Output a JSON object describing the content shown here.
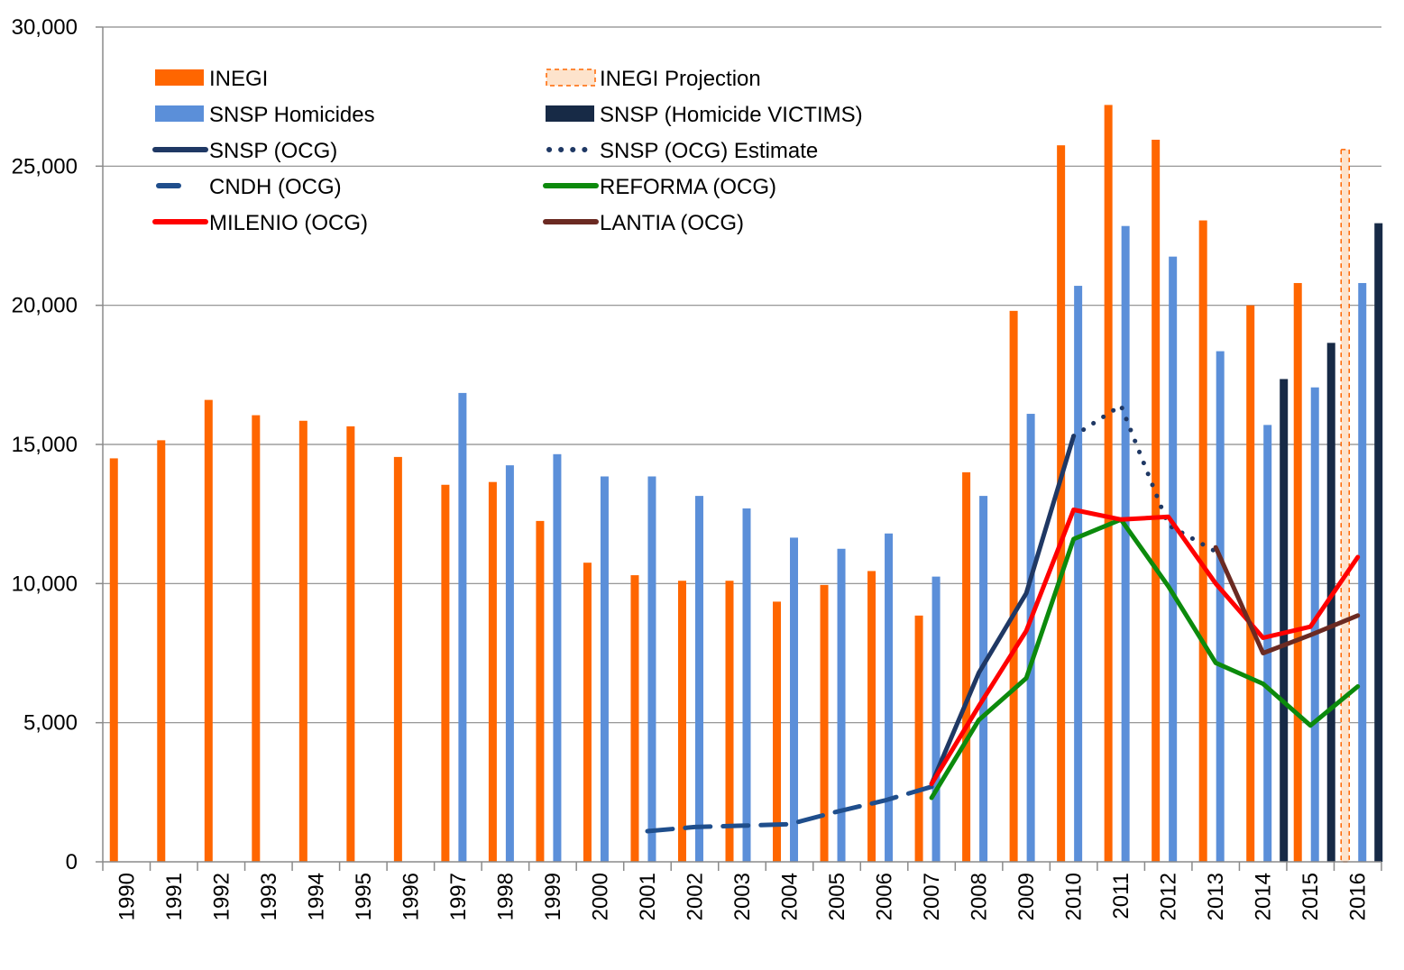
{
  "chart_data": {
    "type": "bar",
    "title": "",
    "xlabel": "",
    "ylabel": "",
    "ylim": [
      0,
      30000
    ],
    "yticks": [
      0,
      5000,
      10000,
      15000,
      20000,
      25000,
      30000
    ],
    "ytick_labels": [
      "0",
      "5,000",
      "10,000",
      "15,000",
      "20,000",
      "25,000",
      "30,000"
    ],
    "categories": [
      "1990",
      "1991",
      "1992",
      "1993",
      "1994",
      "1995",
      "1996",
      "1997",
      "1998",
      "1999",
      "2000",
      "2001",
      "2002",
      "2003",
      "2004",
      "2005",
      "2006",
      "2007",
      "2008",
      "2009",
      "2010",
      "2011",
      "2012",
      "2013",
      "2014",
      "2015",
      "2016"
    ],
    "grid": "horizontal",
    "legend_position": "top-left",
    "bar_series": [
      {
        "name": "INEGI",
        "color": "#ff6600",
        "style": "solid",
        "values": [
          14500,
          15150,
          16600,
          16050,
          15850,
          15650,
          14550,
          13550,
          13650,
          12250,
          10750,
          10300,
          10100,
          10100,
          9350,
          9950,
          10450,
          8850,
          14000,
          19800,
          25750,
          27200,
          25950,
          23050,
          20000,
          20800,
          null
        ]
      },
      {
        "name": "INEGI Projection",
        "color": "#ff6600",
        "style": "dashed",
        "values": [
          null,
          null,
          null,
          null,
          null,
          null,
          null,
          null,
          null,
          null,
          null,
          null,
          null,
          null,
          null,
          null,
          null,
          null,
          null,
          null,
          null,
          null,
          null,
          null,
          null,
          null,
          25600
        ]
      },
      {
        "name": "SNSP Homicides",
        "color": "#5b8fd9",
        "style": "solid",
        "values": [
          null,
          null,
          null,
          null,
          null,
          null,
          null,
          16850,
          14250,
          14650,
          13850,
          13850,
          13150,
          12700,
          11650,
          11250,
          11800,
          10250,
          13150,
          16100,
          20700,
          22850,
          21750,
          18350,
          15700,
          17050,
          20800
        ]
      },
      {
        "name": "SNSP (Homicide VICTIMS)",
        "color": "#172a46",
        "style": "solid",
        "values": [
          null,
          null,
          null,
          null,
          null,
          null,
          null,
          null,
          null,
          null,
          null,
          null,
          null,
          null,
          null,
          null,
          null,
          null,
          null,
          null,
          null,
          null,
          null,
          null,
          17350,
          18650,
          22950
        ]
      }
    ],
    "line_series": [
      {
        "name": "SNSP (OCG)",
        "color": "#1f3864",
        "dash": "solid",
        "points": [
          [
            "2007",
            2800
          ],
          [
            "2008",
            6800
          ],
          [
            "2009",
            9650
          ],
          [
            "2010",
            15300
          ]
        ]
      },
      {
        "name": "SNSP (OCG) Estimate",
        "color": "#1f3864",
        "dash": "dotted",
        "points": [
          [
            "2010",
            15300
          ],
          [
            "2011",
            16400
          ],
          [
            "2012",
            12100
          ],
          [
            "2013",
            11150
          ]
        ]
      },
      {
        "name": "CNDH (OCG)",
        "color": "#1f4e8c",
        "dash": "dashed",
        "points": [
          [
            "2001",
            1100
          ],
          [
            "2002",
            1250
          ],
          [
            "2003",
            1300
          ],
          [
            "2004",
            1350
          ],
          [
            "2005",
            1800
          ],
          [
            "2006",
            2200
          ],
          [
            "2007",
            2700
          ]
        ]
      },
      {
        "name": "REFORMA (OCG)",
        "color": "#0c8a0c",
        "dash": "solid",
        "points": [
          [
            "2007",
            2300
          ],
          [
            "2008",
            5100
          ],
          [
            "2009",
            6600
          ],
          [
            "2010",
            11600
          ],
          [
            "2011",
            12300
          ],
          [
            "2012",
            9900
          ],
          [
            "2013",
            7150
          ],
          [
            "2014",
            6400
          ],
          [
            "2015",
            4900
          ],
          [
            "2016",
            6300
          ]
        ]
      },
      {
        "name": "MILENIO (OCG)",
        "color": "#ff0000",
        "dash": "solid",
        "points": [
          [
            "2007",
            2800
          ],
          [
            "2008",
            5600
          ],
          [
            "2009",
            8300
          ],
          [
            "2010",
            12650
          ],
          [
            "2011",
            12300
          ],
          [
            "2012",
            12400
          ],
          [
            "2013",
            10000
          ],
          [
            "2014",
            8050
          ],
          [
            "2015",
            8450
          ],
          [
            "2016",
            10950
          ]
        ]
      },
      {
        "name": "LANTIA (OCG)",
        "color": "#6b2a22",
        "dash": "solid",
        "points": [
          [
            "2013",
            11300
          ],
          [
            "2014",
            7500
          ],
          [
            "2015",
            8150
          ],
          [
            "2016",
            8850
          ]
        ]
      }
    ],
    "legend": [
      {
        "label": "INEGI",
        "kind": "bar",
        "color": "#ff6600"
      },
      {
        "label": "INEGI Projection",
        "kind": "bar-dashed",
        "color": "#ff6600"
      },
      {
        "label": "SNSP Homicides",
        "kind": "bar",
        "color": "#5b8fd9"
      },
      {
        "label": "SNSP (Homicide VICTIMS)",
        "kind": "bar",
        "color": "#172a46"
      },
      {
        "label": "SNSP (OCG)",
        "kind": "line",
        "color": "#1f3864",
        "dash": "solid"
      },
      {
        "label": "SNSP (OCG) Estimate",
        "kind": "line",
        "color": "#1f3864",
        "dash": "dotted"
      },
      {
        "label": "CNDH (OCG)",
        "kind": "line",
        "color": "#1f4e8c",
        "dash": "dashed"
      },
      {
        "label": "REFORMA (OCG)",
        "kind": "line",
        "color": "#0c8a0c",
        "dash": "solid"
      },
      {
        "label": "MILENIO (OCG)",
        "kind": "line",
        "color": "#ff0000",
        "dash": "solid"
      },
      {
        "label": "LANTIA (OCG)",
        "kind": "line",
        "color": "#6b2a22",
        "dash": "solid"
      }
    ]
  }
}
